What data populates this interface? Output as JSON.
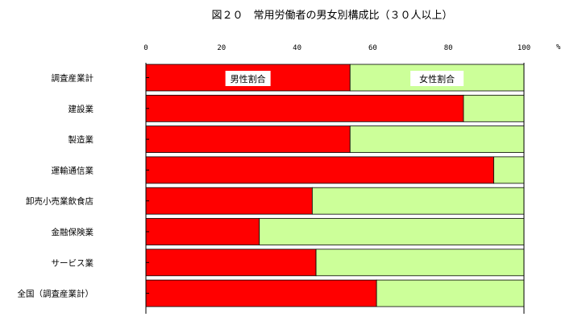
{
  "chart_data": {
    "type": "bar",
    "orientation": "horizontal",
    "stacked": true,
    "title": "図２０　常用労働者の男女別構成比（３０人以上）",
    "unit": "%",
    "xlim": [
      0,
      100
    ],
    "xticks": [
      "0",
      "20",
      "40",
      "60",
      "80",
      "100"
    ],
    "categories": [
      "調査産業計",
      "建設業",
      "製造業",
      "運輸通信業",
      "卸売小売業飲食店",
      "金融保険業",
      "サービス業",
      "全国（調査産業計）"
    ],
    "series": [
      {
        "name": "男性割合",
        "color": "#ff0000",
        "values": [
          54,
          84,
          54,
          92,
          44,
          30,
          45,
          61
        ]
      },
      {
        "name": "女性割合",
        "color": "#ccff99",
        "values": [
          46,
          16,
          46,
          8,
          56,
          70,
          55,
          39
        ]
      }
    ],
    "grid": false,
    "legend": "none"
  }
}
